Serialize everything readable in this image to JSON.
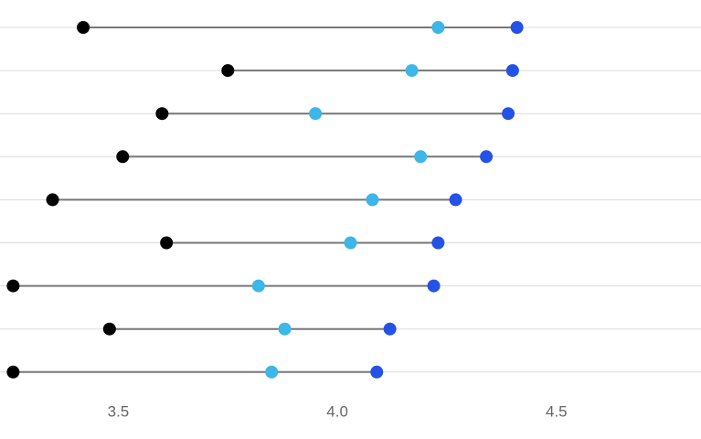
{
  "colors": {
    "background": "#ffffff",
    "gridline": "#dcdcdc",
    "range_line": "#777777",
    "min_dot": "#000000",
    "mid_dot": "#3db6e8",
    "max_dot": "#2552e6",
    "tick_text": "#666666"
  },
  "chart_data": {
    "type": "dot-range",
    "title": "",
    "xlabel": "",
    "ylabel": "",
    "xlim": [
      3.23,
      4.83
    ],
    "x_ticks": [
      3.5,
      4.0,
      4.5
    ],
    "x_tick_labels": [
      "3.5",
      "4.0",
      "4.5"
    ],
    "grid": "horizontal",
    "rows": [
      {
        "min": 3.42,
        "mid": 4.23,
        "max": 4.41
      },
      {
        "min": 3.75,
        "mid": 4.17,
        "max": 4.4
      },
      {
        "min": 3.6,
        "mid": 3.95,
        "max": 4.39
      },
      {
        "min": 3.51,
        "mid": 4.19,
        "max": 4.34
      },
      {
        "min": 3.35,
        "mid": 4.08,
        "max": 4.27
      },
      {
        "min": 3.61,
        "mid": 4.03,
        "max": 4.23
      },
      {
        "min": 3.26,
        "mid": 3.82,
        "max": 4.22
      },
      {
        "min": 3.48,
        "mid": 3.88,
        "max": 4.12
      },
      {
        "min": 3.26,
        "mid": 3.85,
        "max": 4.09
      }
    ]
  }
}
